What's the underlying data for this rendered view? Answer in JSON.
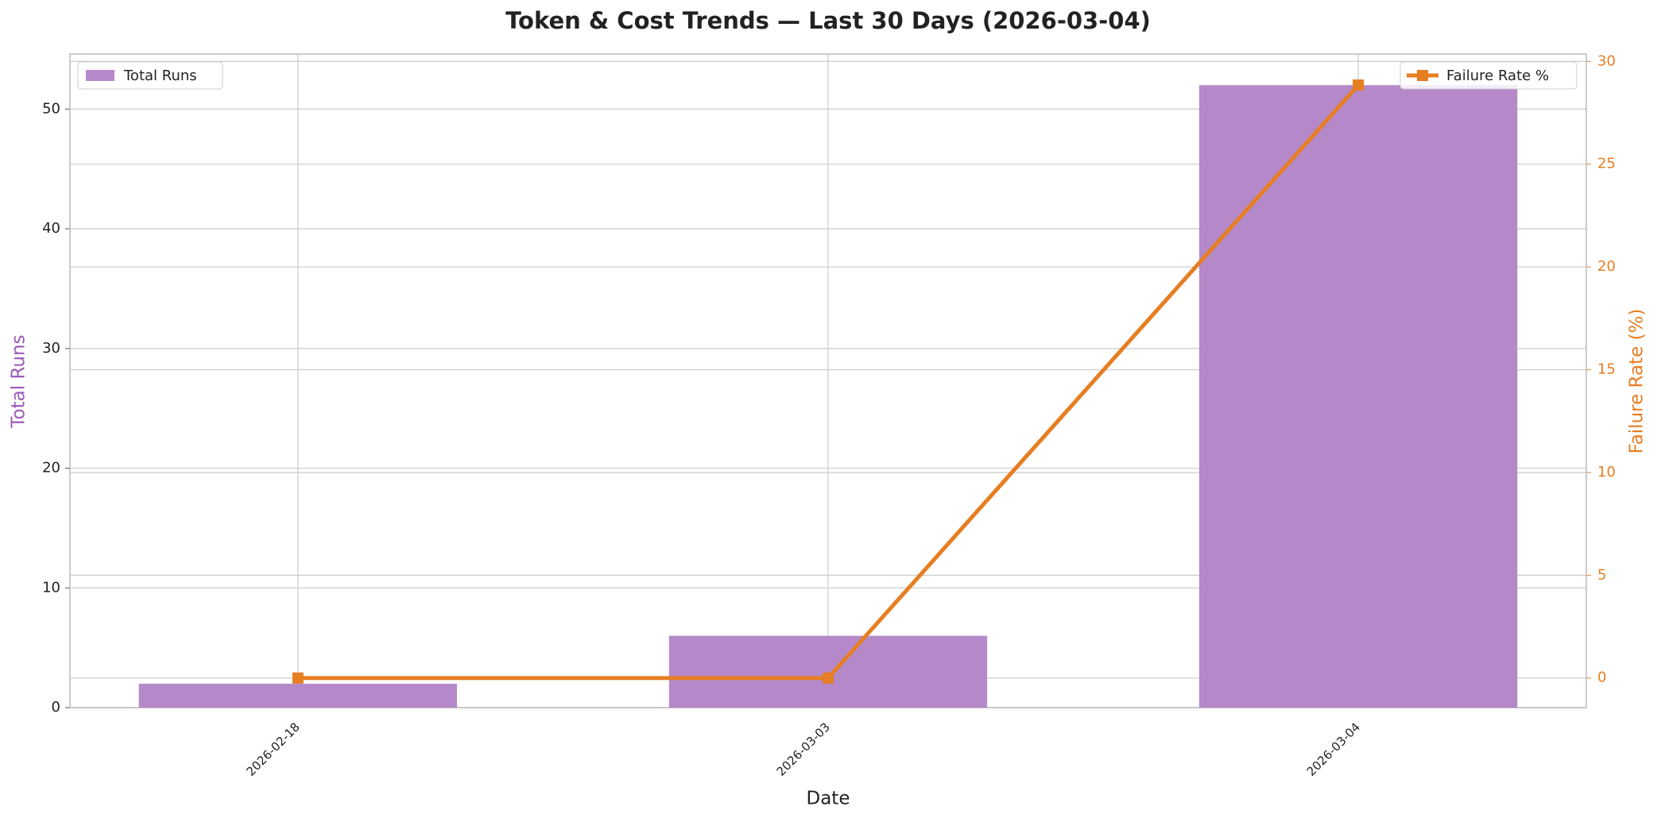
{
  "chart_data": {
    "type": "bar",
    "title": "Token & Cost Trends — Last 30 Days (2026-03-04)",
    "x_label": "Date",
    "y_label": "Total Runs",
    "y2_label": "Failure Rate (%)",
    "categories": [
      "2026-02-18",
      "2026-03-03",
      "2026-03-04"
    ],
    "series": [
      {
        "name": "Total Runs",
        "type": "bar",
        "color": "#b589c9",
        "legend_loc": "upper left",
        "values": [
          2,
          6,
          52
        ]
      },
      {
        "name": "Failure Rate %",
        "type": "line",
        "axis": "y2",
        "color": "#e67e22",
        "legend_loc": "upper right",
        "values": [
          0,
          0,
          28.85
        ]
      }
    ],
    "ylim": [
      0,
      54.6
    ],
    "yticks": [
      0,
      10,
      20,
      30,
      40,
      50
    ],
    "y2lim": [
      -1.44,
      30.36
    ],
    "y2ticks": [
      0,
      5,
      10,
      15,
      20,
      25,
      30
    ],
    "y_label_color": "#9b59b6",
    "y2_color": "#e67e22",
    "grid": true
  }
}
